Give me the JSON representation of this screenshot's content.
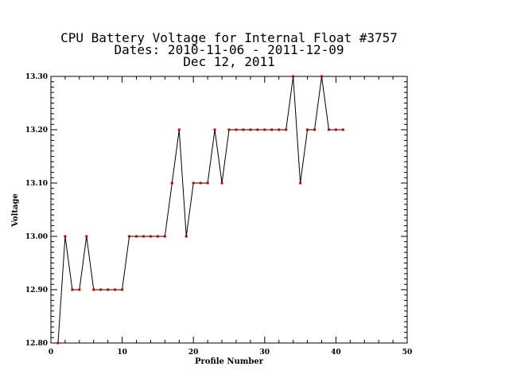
{
  "chart_data": {
    "type": "line",
    "title_lines": [
      "CPU Battery Voltage for Internal Float #3757",
      "Dates:  2010-11-06 -  2011-12-09",
      "Dec 12, 2011"
    ],
    "xlabel": "Profile Number",
    "ylabel": "Voltage",
    "xlim": [
      0,
      50
    ],
    "ylim": [
      12.8,
      13.3
    ],
    "x_ticks": [
      0,
      10,
      20,
      30,
      40,
      50
    ],
    "x_tick_labels": [
      "0",
      "10",
      "20",
      "30",
      "40",
      "50"
    ],
    "y_ticks": [
      12.8,
      12.9,
      13.0,
      13.1,
      13.2,
      13.3
    ],
    "y_tick_labels": [
      "12.80",
      "12.90",
      "13.00",
      "13.10",
      "13.20",
      "13.30"
    ],
    "grid": false,
    "line_color": "#000000",
    "marker_color": "#cc0000",
    "series": [
      {
        "x": [
          1,
          2,
          3,
          4,
          5,
          6,
          7,
          8,
          9,
          10,
          11,
          12,
          13,
          14,
          15,
          16,
          17,
          18,
          19,
          20,
          21,
          22,
          23,
          24,
          25,
          26,
          27,
          28,
          29,
          30,
          31,
          32,
          33,
          34,
          35,
          36,
          37,
          38,
          39,
          40,
          41
        ],
        "y": [
          12.8,
          13.0,
          12.9,
          12.9,
          13.0,
          12.9,
          12.9,
          12.9,
          12.9,
          12.9,
          13.0,
          13.0,
          13.0,
          13.0,
          13.0,
          13.0,
          13.1,
          13.2,
          13.0,
          13.1,
          13.1,
          13.1,
          13.2,
          13.1,
          13.2,
          13.2,
          13.2,
          13.2,
          13.2,
          13.2,
          13.2,
          13.2,
          13.2,
          13.3,
          13.1,
          13.2,
          13.2,
          13.3,
          13.2,
          13.2,
          13.2
        ]
      }
    ]
  }
}
